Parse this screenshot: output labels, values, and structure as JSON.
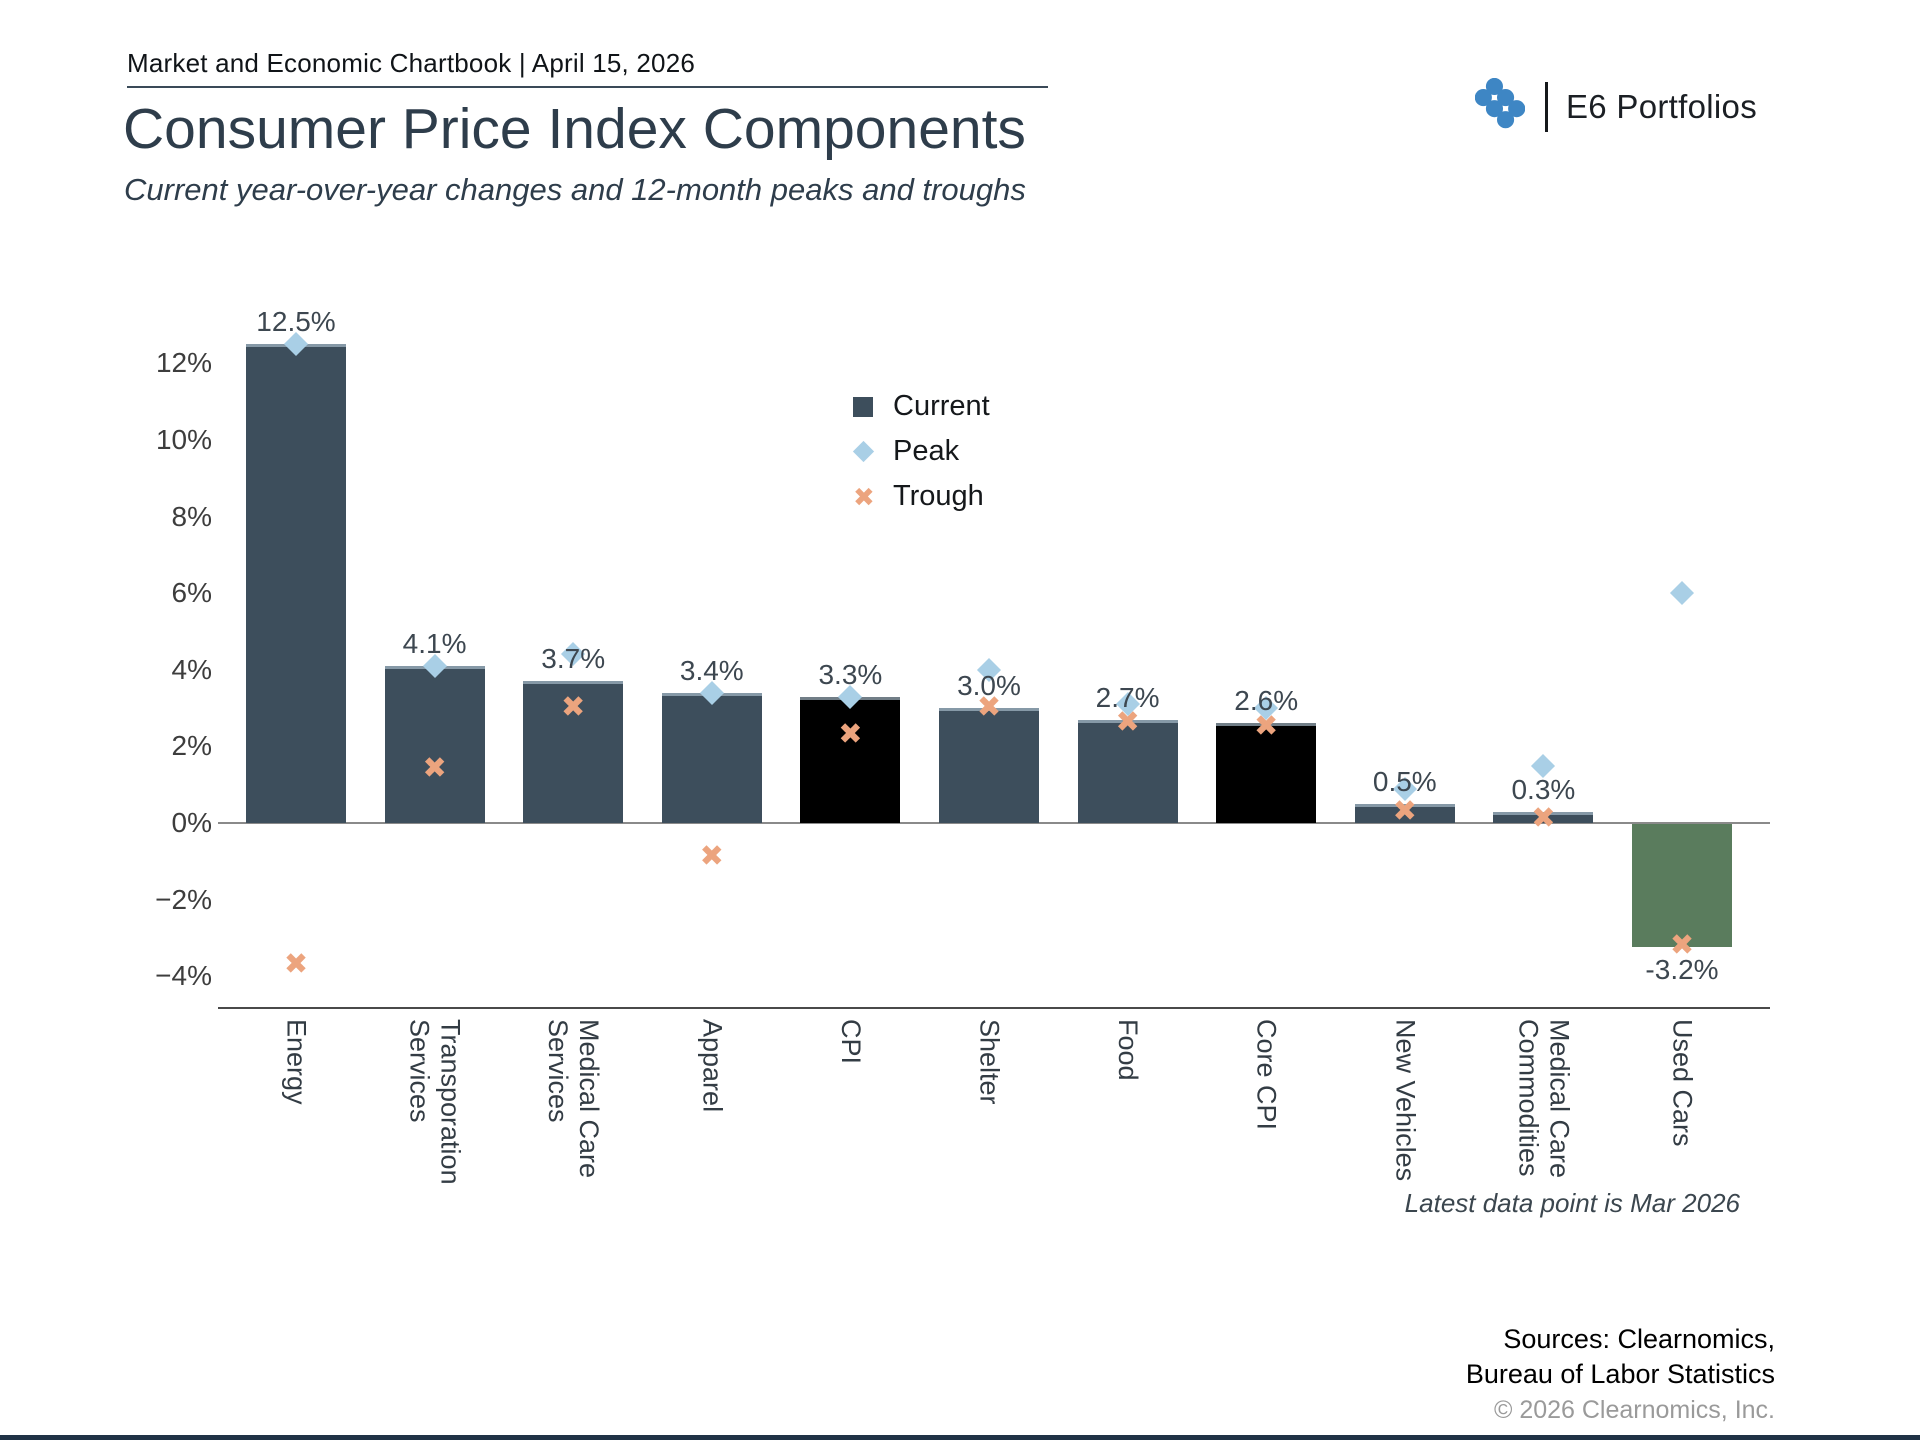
{
  "header": {
    "chartbook_title": "Market and Economic Chartbook | April 15, 2026",
    "brand_name": "E6 Portfolios"
  },
  "title": "Consumer Price Index Components",
  "subtitle": "Current year-over-year changes and 12-month peaks and troughs",
  "legend": [
    {
      "label": "Current",
      "marker": "square",
      "color": "#3d4e5c"
    },
    {
      "label": "Peak",
      "marker": "diamond",
      "color": "#a9cfe6"
    },
    {
      "label": "Trough",
      "marker": "x",
      "color": "#eca47e"
    }
  ],
  "colors": {
    "bar_default": "#3d4e5c",
    "bar_cpi_highlight": "#000000",
    "bar_used_cars": "#5a7c5d",
    "peak_marker": "#a9cfe6",
    "trough_marker": "#eca47e",
    "logo_blue": "#3e86c4"
  },
  "chart_data": {
    "type": "bar",
    "title": "Consumer Price Index Components",
    "subtitle": "Current year-over-year changes and 12-month peaks and troughs",
    "categories": [
      "Energy",
      "Transporation\nServices",
      "Medical Care\nServices",
      "Apparel",
      "CPI",
      "Shelter",
      "Food",
      "Core CPI",
      "New Vehicles",
      "Medical Care\nCommodities",
      "Used Cars"
    ],
    "series": [
      {
        "name": "Current",
        "type": "bar",
        "values": [
          12.5,
          4.1,
          3.7,
          3.4,
          3.3,
          3.0,
          2.7,
          2.6,
          0.5,
          0.3,
          -3.2
        ]
      },
      {
        "name": "Peak",
        "type": "scatter",
        "marker": "diamond",
        "values": [
          12.5,
          4.1,
          4.4,
          3.4,
          3.3,
          4.0,
          3.1,
          3.0,
          0.9,
          1.5,
          6.0
        ]
      },
      {
        "name": "Trough",
        "type": "scatter",
        "marker": "x",
        "values": [
          -3.7,
          1.4,
          3.0,
          -0.9,
          2.3,
          3.0,
          2.6,
          2.5,
          0.3,
          0.1,
          -3.2
        ]
      }
    ],
    "bar_labels": [
      "12.5%",
      "4.1%",
      "3.7%",
      "3.4%",
      "3.3%",
      "3.0%",
      "2.7%",
      "2.6%",
      "0.5%",
      "0.3%",
      "-3.2%"
    ],
    "bar_colors": [
      "#3d4e5c",
      "#3d4e5c",
      "#3d4e5c",
      "#3d4e5c",
      "#000000",
      "#3d4e5c",
      "#3d4e5c",
      "#000000",
      "#3d4e5c",
      "#3d4e5c",
      "#5a7c5d"
    ],
    "yticks": [
      {
        "value": 12,
        "label": "12%"
      },
      {
        "value": 10,
        "label": "10%"
      },
      {
        "value": 8,
        "label": "8%"
      },
      {
        "value": 6,
        "label": "6%"
      },
      {
        "value": 4,
        "label": "4%"
      },
      {
        "value": 2,
        "label": "2%"
      },
      {
        "value": 0,
        "label": "0%"
      },
      {
        "value": -2,
        "label": "−2%"
      },
      {
        "value": -4,
        "label": "−4%"
      }
    ],
    "ylim": [
      -4.8,
      13.9
    ],
    "grid": false,
    "legend_position": "inside-upper-center"
  },
  "footnotes": {
    "latest_note": "Latest data point is Mar 2026",
    "sources_line1": "Sources: Clearnomics,",
    "sources_line2": "Bureau of Labor Statistics",
    "copyright": "© 2026 Clearnomics, Inc."
  }
}
